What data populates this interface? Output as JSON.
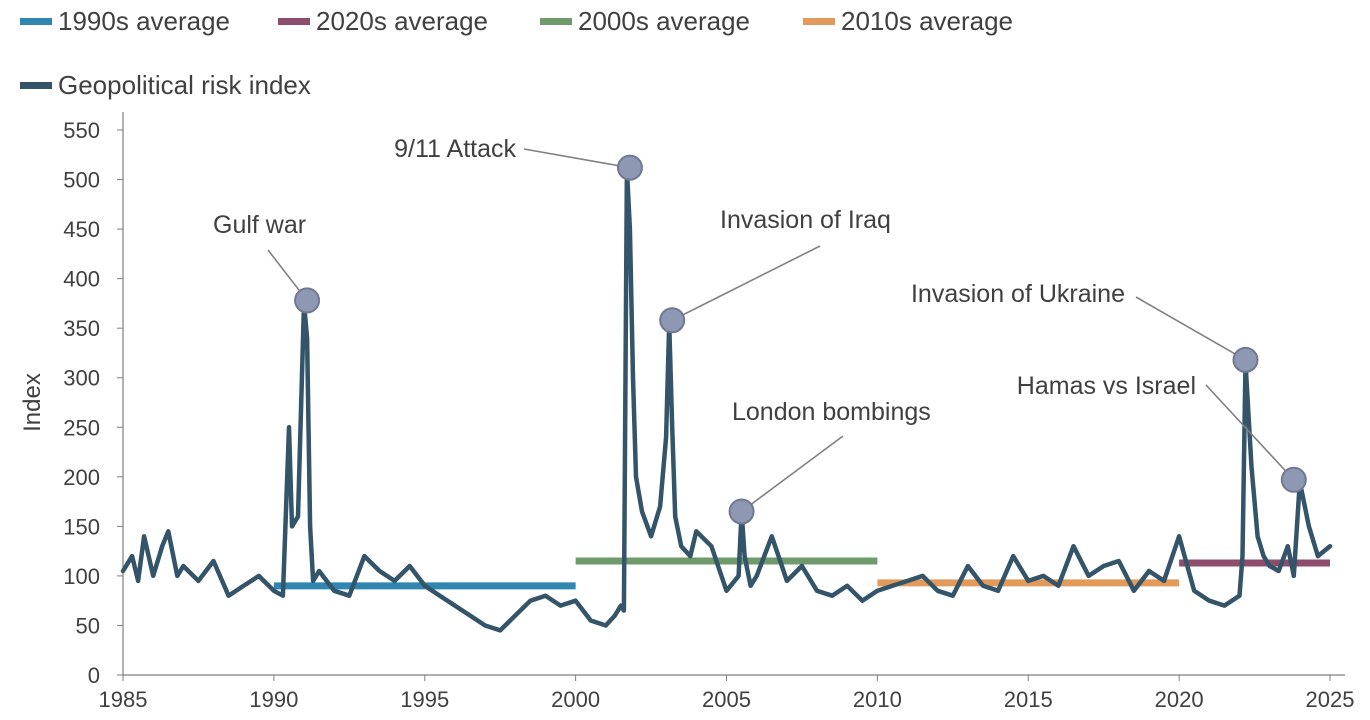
{
  "chart_data": {
    "type": "line",
    "title": "",
    "xlabel": "",
    "ylabel": "Index",
    "xlim": [
      1985,
      2025
    ],
    "ylim": [
      0,
      550
    ],
    "x_ticks": [
      "1985",
      "1990",
      "1995",
      "2000",
      "2005",
      "2010",
      "2015",
      "2020",
      "2025"
    ],
    "y_ticks": [
      "0",
      "50",
      "100",
      "150",
      "200",
      "250",
      "300",
      "350",
      "400",
      "450",
      "500",
      "550"
    ],
    "grid": false,
    "legend_position": "top-left",
    "series": [
      {
        "name": "Geopolitical risk index",
        "color": "#34546a",
        "x": [
          1985.0,
          1985.3,
          1985.5,
          1985.7,
          1986.0,
          1986.3,
          1986.5,
          1986.8,
          1987.0,
          1987.5,
          1988.0,
          1988.5,
          1989.0,
          1989.5,
          1990.0,
          1990.3,
          1990.5,
          1990.6,
          1990.8,
          1991.0,
          1991.1,
          1991.2,
          1991.3,
          1991.5,
          1992.0,
          1992.5,
          1993.0,
          1993.5,
          1994.0,
          1994.5,
          1995.0,
          1995.5,
          1996.0,
          1996.5,
          1997.0,
          1997.5,
          1998.0,
          1998.5,
          1999.0,
          1999.5,
          2000.0,
          2000.5,
          2001.0,
          2001.3,
          2001.5,
          2001.6,
          2001.7,
          2001.8,
          2001.9,
          2002.0,
          2002.2,
          2002.5,
          2002.8,
          2003.0,
          2003.1,
          2003.2,
          2003.3,
          2003.5,
          2003.8,
          2004.0,
          2004.5,
          2005.0,
          2005.4,
          2005.5,
          2005.6,
          2005.8,
          2006.0,
          2006.5,
          2007.0,
          2007.5,
          2008.0,
          2008.5,
          2009.0,
          2009.5,
          2010.0,
          2010.5,
          2011.0,
          2011.5,
          2012.0,
          2012.5,
          2013.0,
          2013.5,
          2014.0,
          2014.5,
          2015.0,
          2015.5,
          2016.0,
          2016.5,
          2017.0,
          2017.5,
          2018.0,
          2018.5,
          2019.0,
          2019.5,
          2020.0,
          2020.5,
          2021.0,
          2021.5,
          2022.0,
          2022.1,
          2022.2,
          2022.4,
          2022.6,
          2022.8,
          2023.0,
          2023.3,
          2023.6,
          2023.8,
          2024.0,
          2024.3,
          2024.6,
          2025.0
        ],
        "y": [
          105,
          120,
          95,
          140,
          100,
          130,
          145,
          100,
          110,
          95,
          115,
          80,
          90,
          100,
          85,
          80,
          250,
          150,
          160,
          375,
          340,
          150,
          95,
          105,
          85,
          80,
          120,
          105,
          95,
          110,
          90,
          80,
          70,
          60,
          50,
          45,
          60,
          75,
          80,
          70,
          75,
          55,
          50,
          60,
          70,
          65,
          510,
          450,
          300,
          200,
          165,
          140,
          170,
          240,
          355,
          250,
          160,
          130,
          120,
          145,
          130,
          85,
          100,
          165,
          120,
          90,
          100,
          140,
          95,
          110,
          85,
          80,
          90,
          75,
          85,
          90,
          95,
          100,
          85,
          80,
          110,
          90,
          85,
          120,
          95,
          100,
          90,
          130,
          100,
          110,
          115,
          85,
          105,
          95,
          140,
          85,
          75,
          70,
          80,
          120,
          315,
          210,
          140,
          120,
          110,
          105,
          130,
          100,
          195,
          150,
          120,
          130
        ]
      }
    ],
    "averages": [
      {
        "name": "1990s average",
        "color": "#2f86b0",
        "x_start": 1990,
        "x_end": 2000,
        "value": 90
      },
      {
        "name": "2020s average",
        "color": "#8d4e6e",
        "x_start": 2020,
        "x_end": 2025,
        "value": 113
      },
      {
        "name": "2000s average",
        "color": "#6f9a6b",
        "x_start": 2000,
        "x_end": 2010,
        "value": 115
      },
      {
        "name": "2010s average",
        "color": "#e29a5a",
        "x_start": 2010,
        "x_end": 2020,
        "value": 93
      }
    ],
    "annotations": [
      {
        "label": "Gulf war",
        "x": 1991.1,
        "y": 378
      },
      {
        "label": "9/11 Attack",
        "x": 2001.8,
        "y": 512
      },
      {
        "label": "Invasion of Iraq",
        "x": 2003.2,
        "y": 358
      },
      {
        "label": "London bombings",
        "x": 2005.5,
        "y": 165
      },
      {
        "label": "Invasion of Ukraine",
        "x": 2022.2,
        "y": 318
      },
      {
        "label": "Hamas vs Israel",
        "x": 2023.8,
        "y": 197
      }
    ]
  },
  "legend": {
    "items": [
      {
        "label": "1990s average",
        "color": "#2f86b0"
      },
      {
        "label": "2020s average",
        "color": "#8d4e6e"
      },
      {
        "label": "2000s average",
        "color": "#6f9a6b"
      },
      {
        "label": "2010s average",
        "color": "#e29a5a"
      },
      {
        "label": "Geopolitical risk index",
        "color": "#34546a"
      }
    ]
  }
}
